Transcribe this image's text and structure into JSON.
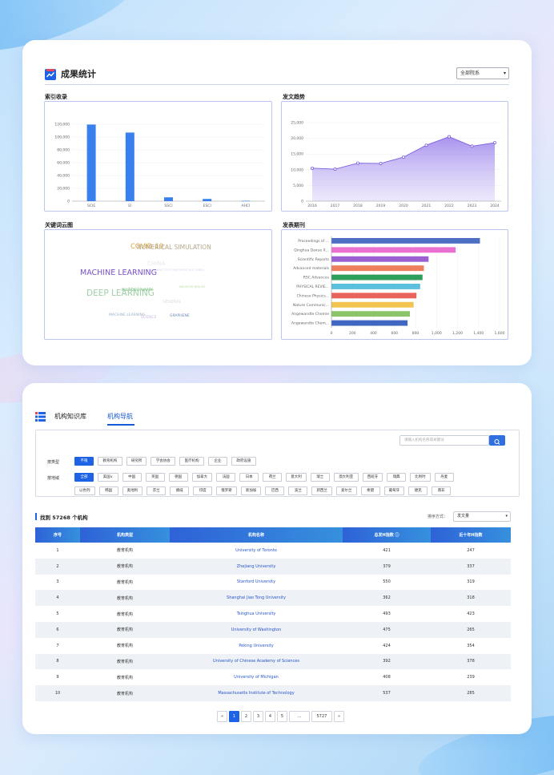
{
  "stats": {
    "title": "成果统计",
    "college_select": "全部院系",
    "index_panel": {
      "label": "索引收录",
      "chart_data": {
        "type": "bar",
        "categories": [
          "SCIE",
          "EI",
          "SSCI",
          "ESCI",
          "AHCI"
        ],
        "values": [
          119500,
          107000,
          6000,
          3500,
          500
        ],
        "ylim": [
          0,
          120000
        ],
        "yticks": [
          "0",
          "20,000",
          "40,000",
          "60,000",
          "80,000",
          "100,000",
          "120,000"
        ],
        "color": "#3a80ec"
      }
    },
    "trend_panel": {
      "label": "发文趋势",
      "chart_data": {
        "type": "area",
        "x": [
          "2016",
          "2017",
          "2018",
          "2019",
          "2020",
          "2021",
          "2022",
          "2023",
          "2024"
        ],
        "values": [
          10500,
          10200,
          12100,
          12000,
          14000,
          17800,
          20500,
          17500,
          18600
        ],
        "ylim": [
          0,
          25000
        ],
        "yticks": [
          "0",
          "5,000",
          "10,000",
          "15,000",
          "20,000",
          "25,000"
        ],
        "color": "#8b6ee8"
      }
    },
    "cloud_panel": {
      "label": "关键词云图",
      "words": [
        {
          "text": "COVID-19",
          "color": "#d6a840"
        },
        {
          "text": "NUMERICAL SIMULATION",
          "color": "#b8a58a"
        },
        {
          "text": "CHINA",
          "color": "#e8e8ee"
        },
        {
          "text": "SUPERCONDUCTIVITY/HETEROSTRUCTURES",
          "color": "#d4d8ea"
        },
        {
          "text": "MACHINE LEARNING",
          "color": "#7a4fc9"
        },
        {
          "text": "MULTIDISCIPLINARY",
          "color": "#4caa55"
        },
        {
          "text": "NEUROSCIENCES",
          "color": "#b8e0a8"
        },
        {
          "text": "DEEP LEARNING",
          "color": "#9ed0a4"
        },
        {
          "text": "GENERAL",
          "color": "#dcdce4"
        },
        {
          "text": "MACHINE LEARNING",
          "color": "#9ab3cc"
        },
        {
          "text": "SCIENCE",
          "color": "#c9b8e0"
        },
        {
          "text": "GRAPHENE",
          "color": "#6a87b8"
        }
      ]
    },
    "journal_panel": {
      "label": "发表期刊",
      "chart_data": {
        "type": "bar",
        "orientation": "horizontal",
        "categories": [
          "Proceedings of ...",
          "Qinghua Daxue X...",
          "Scientific Reports",
          "Advanced materials",
          "RSC Advances",
          "PHYSICAL REVIE...",
          "Chinese Physics...",
          "Nature Communic...",
          "Angewandte Chemie",
          "Angewandte Chem..."
        ],
        "values": [
          1590,
          1330,
          1040,
          990,
          975,
          950,
          910,
          880,
          840,
          815
        ],
        "colors": [
          "#4d6fc4",
          "#e96fd0",
          "#9b5fd1",
          "#ee7f5c",
          "#2f9e5d",
          "#5bc0dd",
          "#e8635a",
          "#f3c550",
          "#8cc46b",
          "#3e66c2"
        ],
        "xlim": [
          0,
          1800
        ],
        "xticks": [
          "0",
          "200",
          "400",
          "600",
          "800",
          "1,000",
          "1,200",
          "1,400",
          "1,600"
        ]
      }
    }
  },
  "institutions": {
    "tab_kb": "机构知识库",
    "tab_nav": "机构导航",
    "search_placeholder": "请输入机构名称或关键词",
    "type_label": "按类型",
    "types": [
      "不限",
      "教育机构",
      "研究所",
      "学会协会",
      "医疗机构",
      "企业",
      "政府设施"
    ],
    "region_label": "按地域",
    "regions_row1": [
      "全部",
      "美国∨",
      "中国",
      "英国",
      "德国",
      "加拿大",
      "法国",
      "日本",
      "荷兰",
      "意大利",
      "瑞士",
      "澳大利亚",
      "西班牙",
      "瑞典",
      "比利时",
      "丹麦"
    ],
    "regions_row2": [
      "以色列",
      "韩国",
      "奥地利",
      "芬兰",
      "挪威",
      "印度",
      "俄罗斯",
      "新加坡",
      "巴西",
      "波兰",
      "新西兰",
      "爱尔兰",
      "希腊",
      "葡萄牙",
      "捷克",
      "南非"
    ],
    "result_text": "找到 57268 个机构",
    "sort_label": "排序方式：",
    "sort_value": "发文量",
    "columns": [
      "序号",
      "机构类型",
      "机构名称",
      "总发H指数 ⓘ",
      "近十年H指数"
    ],
    "rows": [
      [
        "1",
        "教育机构",
        "University of Toronto",
        "421",
        "247"
      ],
      [
        "2",
        "教育机构",
        "Zhejiang University",
        "379",
        "337"
      ],
      [
        "3",
        "教育机构",
        "Stanford University",
        "550",
        "319"
      ],
      [
        "4",
        "教育机构",
        "Shanghai Jiao Tong University",
        "362",
        "318"
      ],
      [
        "5",
        "教育机构",
        "Tsinghua University",
        "493",
        "423"
      ],
      [
        "6",
        "教育机构",
        "University of Washington",
        "475",
        "265"
      ],
      [
        "7",
        "教育机构",
        "Peking University",
        "424",
        "354"
      ],
      [
        "8",
        "教育机构",
        "University of Chinese Academy of Sciences",
        "392",
        "378"
      ],
      [
        "9",
        "教育机构",
        "University of Michigan",
        "408",
        "239"
      ],
      [
        "10",
        "教育机构",
        "Massachusetts Institute of Technology",
        "537",
        "285"
      ]
    ],
    "pager": [
      "«",
      "1",
      "2",
      "3",
      "4",
      "5",
      "...",
      "5727",
      "»"
    ]
  }
}
